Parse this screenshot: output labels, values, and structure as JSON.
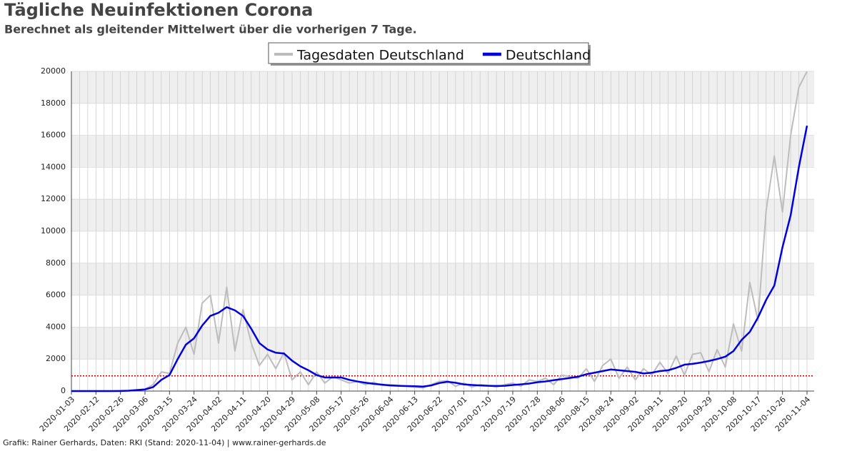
{
  "chart_data": {
    "type": "line",
    "title": "Tägliche Neuinfektionen Corona",
    "subtitle": "Berechnet als gleitender Mittelwert über die vorherigen 7 Tage.",
    "footer": "Grafik: Rainer Gerhards, Daten: RKI (Stand: 2020-11-04) | www.rainer-gerhards.de",
    "categories": [
      "2020-01-03",
      null,
      null,
      "2020-02-12",
      null,
      null,
      "2020-02-26",
      null,
      null,
      "2020-03-06",
      null,
      null,
      "2020-03-15",
      null,
      null,
      "2020-03-24",
      null,
      null,
      "2020-04-02",
      null,
      null,
      "2020-04-11",
      null,
      null,
      "2020-04-20",
      null,
      null,
      "2020-04-29",
      null,
      null,
      "2020-05-08",
      null,
      null,
      "2020-05-17",
      null,
      null,
      "2020-05-26",
      null,
      null,
      "2020-06-04",
      null,
      null,
      "2020-06-13",
      null,
      null,
      "2020-06-22",
      null,
      null,
      "2020-07-01",
      null,
      null,
      "2020-07-10",
      null,
      null,
      "2020-07-19",
      null,
      null,
      "2020-07-28",
      null,
      null,
      "2020-08-06",
      null,
      null,
      "2020-08-15",
      null,
      null,
      "2020-08-24",
      null,
      null,
      "2020-09-02",
      null,
      null,
      "2020-09-11",
      null,
      null,
      "2020-09-20",
      null,
      null,
      "2020-09-29",
      null,
      null,
      "2020-10-08",
      null,
      null,
      "2020-10-17",
      null,
      null,
      "2020-10-26",
      null,
      null,
      "2020-11-04"
    ],
    "series": [
      {
        "name": "Tagesdaten Deutschland",
        "color": "#bdbdbd",
        "width": 2,
        "values": [
          0,
          0,
          0,
          0,
          0,
          0,
          10,
          30,
          80,
          120,
          400,
          1200,
          1100,
          3000,
          4000,
          2300,
          5500,
          6000,
          3000,
          6500,
          2500,
          5100,
          3000,
          1600,
          2300,
          1400,
          2400,
          700,
          1200,
          400,
          1200,
          500,
          900,
          700,
          500,
          600,
          400,
          550,
          350,
          400,
          350,
          300,
          250,
          200,
          400,
          600,
          650,
          300,
          500,
          250,
          400,
          350,
          250,
          400,
          500,
          300,
          700,
          600,
          800,
          400,
          1000,
          900,
          800,
          1400,
          600,
          1600,
          2000,
          800,
          1500,
          700,
          1400,
          1000,
          1800,
          1100,
          2200,
          1000,
          2300,
          2400,
          1200,
          2600,
          1500,
          4200,
          2500,
          6800,
          4400,
          11300,
          14700,
          11200,
          16000,
          19000,
          20000
        ]
      },
      {
        "name": "Deutschland",
        "color": "#0000e0",
        "width": 2.5,
        "values": [
          0,
          0,
          0,
          0,
          0,
          0,
          5,
          20,
          60,
          100,
          250,
          700,
          1000,
          2000,
          2900,
          3300,
          4100,
          4700,
          4900,
          5250,
          5050,
          4700,
          3900,
          3000,
          2600,
          2400,
          2350,
          1900,
          1550,
          1300,
          1000,
          850,
          850,
          850,
          700,
          600,
          520,
          450,
          400,
          350,
          330,
          310,
          300,
          280,
          350,
          500,
          580,
          520,
          420,
          380,
          350,
          330,
          320,
          330,
          380,
          420,
          470,
          550,
          600,
          680,
          750,
          820,
          900,
          1050,
          1150,
          1250,
          1350,
          1300,
          1250,
          1200,
          1100,
          1150,
          1250,
          1300,
          1450,
          1650,
          1700,
          1780,
          1880,
          2000,
          2150,
          2500,
          3200,
          3700,
          4600,
          5700,
          6600,
          9000,
          11000,
          14000,
          16600
        ]
      }
    ],
    "ylim": [
      0,
      20000
    ],
    "yticks": [
      0,
      2000,
      4000,
      6000,
      8000,
      10000,
      12000,
      14000,
      16000,
      18000,
      20000
    ],
    "grid": true,
    "hline": {
      "value": 950,
      "color": "#c00000"
    },
    "legend": "top"
  }
}
